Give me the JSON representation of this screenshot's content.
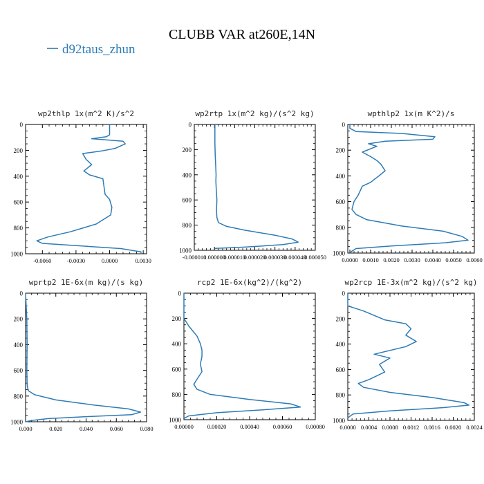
{
  "figure": {
    "title": "CLUBB VAR at260E,14N",
    "legend_label": "d92taus_zhun",
    "line_color": "#2c7bb6"
  },
  "chart_data": [
    {
      "type": "line",
      "title": "wp2thlp   1x(m^2 K)/s^2",
      "xlim": [
        -0.0075,
        0.0033
      ],
      "ylim": [
        1000,
        0
      ],
      "xticks": [
        -0.006,
        -0.003,
        0.0,
        0.003
      ],
      "xtick_labels": [
        "-0.0060",
        "-0.0030",
        "0.0000",
        "0.0030"
      ],
      "yticks": [
        0,
        200,
        400,
        600,
        800,
        1000
      ],
      "series": [
        {
          "name": "d92taus_zhun",
          "x": [
            0,
            0,
            -0.0003,
            -0.0016,
            0.0012,
            0.0014,
            0.0005,
            -0.0007,
            -0.0024,
            -0.0021,
            -0.0016,
            -0.0023,
            -0.0018,
            -0.0006,
            -0.0005,
            -0.0004,
            0.0,
            0.0002,
            0.0001,
            -0.0012,
            -0.0035,
            -0.0055,
            -0.0065,
            -0.006,
            0.001,
            0.0028,
            0.0028
          ],
          "y": [
            0,
            80,
            95,
            110,
            130,
            150,
            185,
            205,
            225,
            270,
            310,
            360,
            390,
            420,
            480,
            540,
            580,
            640,
            700,
            770,
            830,
            870,
            900,
            920,
            960,
            985,
            1000
          ]
        }
      ]
    },
    {
      "type": "line",
      "title": "wp2rtp   1x(m^2 kg)/(s^2 kg)",
      "xlim": [
        -1e-05,
        5e-05
      ],
      "ylim": [
        1000,
        0
      ],
      "xticks": [
        -1e-05,
        0.0,
        1e-05,
        2e-05,
        3e-05,
        4e-05,
        5e-05
      ],
      "xtick_labels": [
        "-0.000010",
        "0.000000",
        "0.000010",
        "0.000020",
        "0.000030",
        "0.000040",
        "0.000050"
      ],
      "yticks": [
        0,
        200,
        400,
        600,
        800,
        1000
      ],
      "series": [
        {
          "name": "d92taus_zhun",
          "x": [
            2e-07,
            2e-07,
            4e-07,
            6e-07,
            8e-07,
            7e-07,
            9e-07,
            1.2e-06,
            1e-06,
            1.2e-06,
            2e-06,
            6e-06,
            1.5e-05,
            3e-05,
            3.85e-05,
            4.15e-05,
            3.4e-05,
            1.5e-05,
            2e-07
          ],
          "y": [
            0,
            150,
            250,
            320,
            400,
            450,
            520,
            600,
            680,
            740,
            780,
            810,
            840,
            880,
            910,
            935,
            955,
            975,
            985
          ]
        }
      ]
    },
    {
      "type": "line",
      "title": "wpthlp2   1x(m K^2)/s",
      "xlim": [
        -0.0001,
        0.006
      ],
      "ylim": [
        1000,
        0
      ],
      "xticks": [
        0.0,
        0.001,
        0.002,
        0.003,
        0.004,
        0.005,
        0.006
      ],
      "xtick_labels": [
        "0.0000",
        "0.0010",
        "0.0020",
        "0.0030",
        "0.0040",
        "0.0050",
        "0.0060"
      ],
      "yticks": [
        0,
        200,
        400,
        600,
        800,
        1000
      ],
      "series": [
        {
          "name": "d92taus_zhun",
          "x": [
            0.0,
            0.0,
            0.0003,
            0.0025,
            0.0041,
            0.004,
            0.0017,
            0.0009,
            0.0013,
            0.0006,
            0.001,
            0.0013,
            0.0015,
            0.0017,
            0.0014,
            0.001,
            0.0006,
            0.0004,
            0.0002,
            0.0001,
            0.0003,
            0.0008,
            0.0025,
            0.0045,
            0.0054,
            0.0057,
            0.0046,
            0.002,
            0.0003,
            0.0001,
            0.0
          ],
          "y": [
            0,
            30,
            55,
            70,
            95,
            115,
            130,
            150,
            170,
            215,
            250,
            280,
            310,
            360,
            400,
            450,
            480,
            550,
            600,
            660,
            700,
            740,
            790,
            830,
            870,
            900,
            920,
            945,
            965,
            985,
            1000
          ]
        }
      ]
    },
    {
      "type": "line",
      "title": "wprtp2   1E-6x(m kg)/(s kg)",
      "xlim": [
        0.0,
        0.08
      ],
      "ylim": [
        1000,
        0
      ],
      "xticks": [
        0.0,
        0.02,
        0.04,
        0.06,
        0.08
      ],
      "xtick_labels": [
        "0.000",
        "0.020",
        "0.040",
        "0.060",
        "0.080"
      ],
      "yticks": [
        0,
        200,
        400,
        600,
        800,
        1000
      ],
      "series": [
        {
          "name": "d92taus_zhun",
          "x": [
            0.0,
            0.0008,
            0.001,
            0.0008,
            0.001,
            0.0012,
            0.002,
            0.006,
            0.02,
            0.045,
            0.068,
            0.076,
            0.07,
            0.04,
            0.015,
            0.004,
            0.0
          ],
          "y": [
            0,
            200,
            400,
            600,
            700,
            730,
            760,
            790,
            830,
            870,
            900,
            925,
            945,
            960,
            975,
            990,
            1000
          ]
        }
      ]
    },
    {
      "type": "line",
      "title": "rcp2   1E-6x(kg^2)/(kg^2)",
      "xlim": [
        0.0,
        0.0008
      ],
      "ylim": [
        1000,
        0
      ],
      "xticks": [
        0.0,
        0.0002,
        0.0004,
        0.0006,
        0.0008
      ],
      "xtick_labels": [
        "0.00000",
        "0.00020",
        "0.00040",
        "0.00060",
        "0.00080"
      ],
      "yticks": [
        0,
        200,
        400,
        600,
        800,
        1000
      ],
      "series": [
        {
          "name": "d92taus_zhun",
          "x": [
            0.0,
            0.0,
            3e-05,
            8e-05,
            0.0001,
            0.00011,
            0.00011,
            0.0001,
            0.00011,
            8e-05,
            6e-05,
            8e-05,
            0.00016,
            0.0004,
            0.00065,
            0.00071,
            0.0005,
            0.0002,
            3e-05,
            0.0
          ],
          "y": [
            0,
            200,
            260,
            340,
            400,
            450,
            500,
            560,
            620,
            680,
            720,
            760,
            800,
            840,
            875,
            900,
            920,
            945,
            970,
            990
          ]
        }
      ]
    },
    {
      "type": "line",
      "title": "wp2rcp   1E-3x(m^2 kg)/(s^2 kg)",
      "xlim": [
        0.0,
        0.0024
      ],
      "ylim": [
        1000,
        0
      ],
      "xticks": [
        0.0,
        0.0004,
        0.0008,
        0.0012,
        0.0016,
        0.002,
        0.0024
      ],
      "xtick_labels": [
        "0.0000",
        "0.0004",
        "0.0008",
        "0.0012",
        "0.0016",
        "0.0020",
        "0.0024"
      ],
      "yticks": [
        0,
        200,
        400,
        600,
        800,
        1000
      ],
      "series": [
        {
          "name": "d92taus_zhun",
          "x": [
            0.0,
            0.0,
            0.0003,
            0.0007,
            0.0011,
            0.0012,
            0.0011,
            0.0013,
            0.0011,
            0.0005,
            0.0008,
            0.0006,
            0.0007,
            0.0004,
            0.0002,
            0.0003,
            0.0008,
            0.0016,
            0.0022,
            0.0023,
            0.0018,
            0.0008,
            0.0001,
            0.0
          ],
          "y": [
            0,
            100,
            140,
            210,
            240,
            280,
            330,
            380,
            420,
            480,
            510,
            560,
            620,
            680,
            710,
            740,
            780,
            820,
            860,
            880,
            900,
            925,
            950,
            980
          ]
        }
      ]
    }
  ]
}
